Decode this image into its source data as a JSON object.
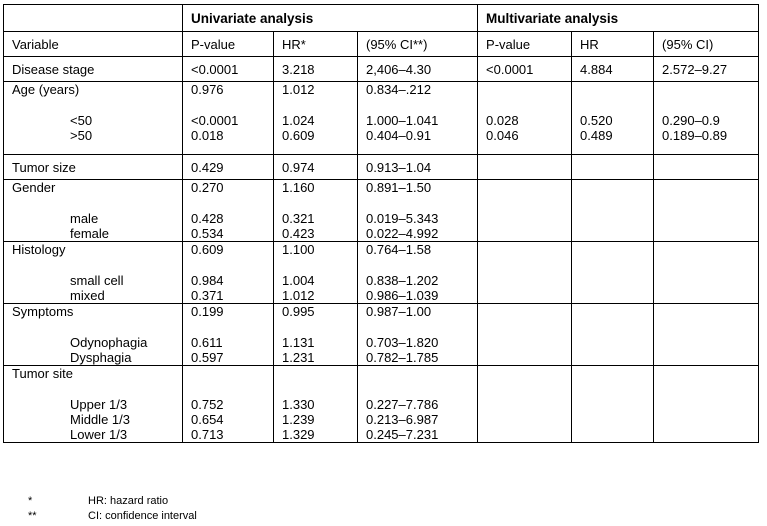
{
  "header": {
    "group_left": "",
    "group_univariate": "Univariate analysis",
    "group_multivariate": "Multivariate analysis",
    "columns": [
      "Variable",
      "P-value",
      "HR*",
      "(95% CI**)",
      "P-value",
      "HR",
      "(95% CI)"
    ]
  },
  "rows": [
    {
      "variable": "Disease stage",
      "u": [
        "<0.0001",
        "3.218",
        "2,406–4.30"
      ],
      "m": [
        "<0.0001",
        "4.884",
        "2.572–9.27"
      ]
    },
    {
      "variable": "Age (years)",
      "u": [
        "0.976",
        "1.012",
        "0.834–.212"
      ],
      "subs": [
        {
          "label": "<50",
          "u": [
            "<0.0001",
            "1.024",
            "1.000–1.041"
          ],
          "m": [
            "0.028",
            "0.520",
            "0.290–0.9"
          ]
        },
        {
          "label": ">50",
          "u": [
            "0.018",
            "0.609",
            "0.404–0.91"
          ],
          "m": [
            "0.046",
            "0.489",
            "0.189–0.89"
          ]
        }
      ]
    },
    {
      "variable": "Tumor size",
      "u": [
        "0.429",
        "0.974",
        "0.913–1.04"
      ]
    },
    {
      "variable": "Gender",
      "u": [
        "0.270",
        "1.160",
        "0.891–1.50"
      ],
      "subs": [
        {
          "label": "male",
          "u": [
            "0.428",
            "0.321",
            "0.019–5.343"
          ]
        },
        {
          "label": "female",
          "u": [
            "0.534",
            "0.423",
            "0.022–4.992"
          ]
        }
      ]
    },
    {
      "variable": "Histology",
      "u": [
        "0.609",
        "1.100",
        "0.764–1.58"
      ],
      "subs": [
        {
          "label": "small cell",
          "u": [
            "0.984",
            "1.004",
            "0.838–1.202"
          ]
        },
        {
          "label": "mixed",
          "u": [
            "0.371",
            "1.012",
            "0.986–1.039"
          ]
        }
      ]
    },
    {
      "variable": "Symptoms",
      "u": [
        "0.199",
        "0.995",
        "0.987–1.00"
      ],
      "subs": [
        {
          "label": "Odynophagia",
          "u": [
            "0.611",
            "1.131",
            "0.703–1.820"
          ]
        },
        {
          "label": "Dysphagia",
          "u": [
            "0.597",
            "1.231",
            "0.782–1.785"
          ]
        }
      ]
    },
    {
      "variable": "Tumor site",
      "subs": [
        {
          "label": "Upper 1/3",
          "u": [
            "0.752",
            "1.330",
            "0.227–7.786"
          ]
        },
        {
          "label": "Middle 1/3",
          "u": [
            "0.654",
            "1.239",
            "0.213–6.987"
          ]
        },
        {
          "label": "Lower 1/3",
          "u": [
            "0.713",
            "1.329",
            "0.245–7.231"
          ]
        }
      ]
    }
  ],
  "footnotes": [
    {
      "mark": "*",
      "text": "HR: hazard ratio"
    },
    {
      "mark": "**",
      "text": "CI: confidence interval"
    }
  ]
}
